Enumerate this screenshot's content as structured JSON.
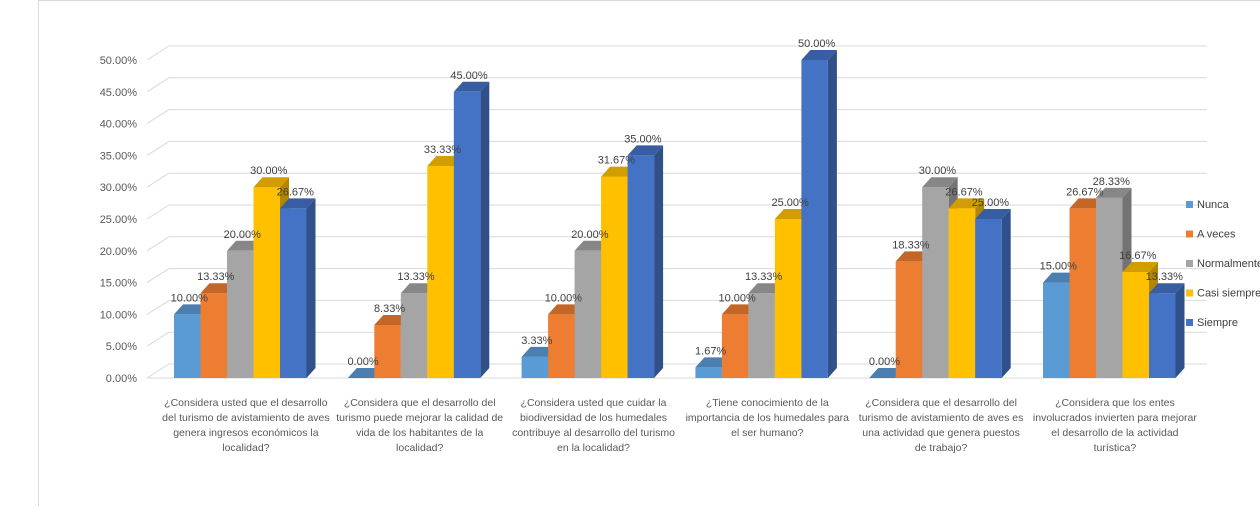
{
  "chart_data": {
    "type": "bar",
    "categories": [
      "¿Considera usted que el desarrollo del turismo de avistamiento de aves genera ingresos económicos la localidad?",
      "¿Considera que el desarrollo del turismo puede mejorar la calidad de vida de los habitantes de la localidad?",
      "¿Considera usted que cuidar la biodiversidad de los humedales contribuye al desarrollo del turismo en la localidad?",
      "¿Tiene conocimiento de la importancia de los humedales para el ser humano?",
      "¿Considera que el desarrollo del turismo de avistamiento de aves es una actividad que genera puestos de trabajo?",
      "¿Considera que los entes involucrados invierten para mejorar el desarrollo de la actividad turística?"
    ],
    "category_lines": [
      [
        "¿Considera usted que el desarrollo",
        "del turismo de avistamiento de aves",
        "genera ingresos económicos la",
        "localidad?"
      ],
      [
        "¿Considera que el desarrollo del",
        "turismo puede mejorar la calidad de",
        "vida de los habitantes de la",
        "localidad?"
      ],
      [
        "¿Considera usted que cuidar la",
        "biodiversidad de los humedales",
        "contribuye al desarrollo del turismo",
        "en la localidad?"
      ],
      [
        "¿Tiene conocimiento de la",
        "importancia de los humedales para",
        "el ser humano?"
      ],
      [
        "¿Considera que el desarrollo del",
        "turismo de avistamiento de aves es",
        "una actividad que genera puestos",
        "de trabajo?"
      ],
      [
        "¿Considera que los entes",
        "involucrados invierten para mejorar",
        "el desarrollo de la actividad",
        "turística?"
      ]
    ],
    "series": [
      {
        "name": "Nunca",
        "color": "#5B9BD5",
        "values": [
          10.0,
          0.0,
          3.33,
          1.67,
          0.0,
          15.0
        ],
        "labels": [
          "10.00%",
          "0.00%",
          "3.33%",
          "1.67%",
          "0.00%",
          "15.00%"
        ]
      },
      {
        "name": "A veces",
        "color": "#ED7D31",
        "values": [
          13.33,
          8.33,
          10.0,
          10.0,
          18.33,
          26.67
        ],
        "labels": [
          "13.33%",
          "8.33%",
          "10.00%",
          "10.00%",
          "18.33%",
          "26.67%"
        ]
      },
      {
        "name": "Normalmente",
        "color": "#A5A5A5",
        "values": [
          20.0,
          13.33,
          20.0,
          13.33,
          30.0,
          28.33
        ],
        "labels": [
          "20.00%",
          "13.33%",
          "20.00%",
          "13.33%",
          "30.00%",
          "28.33%"
        ]
      },
      {
        "name": "Casi siempre",
        "color": "#FFC000",
        "values": [
          30.0,
          33.33,
          31.67,
          25.0,
          26.67,
          16.67
        ],
        "labels": [
          "30.00%",
          "33.33%",
          "31.67%",
          "25.00%",
          "26.67%",
          "16.67%"
        ]
      },
      {
        "name": "Siempre",
        "color": "#4472C4",
        "values": [
          26.67,
          45.0,
          35.0,
          50.0,
          25.0,
          13.33
        ],
        "labels": [
          "26.67%",
          "45.00%",
          "35.00%",
          "50.00%",
          "25.00%",
          "13.33%"
        ]
      }
    ],
    "y_ticks": [
      0,
      5,
      10,
      15,
      20,
      25,
      30,
      35,
      40,
      45,
      50
    ],
    "y_tick_labels": [
      "0.00%",
      "5.00%",
      "10.00%",
      "15.00%",
      "20.00%",
      "25.00%",
      "30.00%",
      "35.00%",
      "40.00%",
      "45.00%",
      "50.00%"
    ],
    "ylim": [
      0,
      50
    ],
    "grid": true,
    "legend_position": "right",
    "style": "3d-clustered-column"
  }
}
